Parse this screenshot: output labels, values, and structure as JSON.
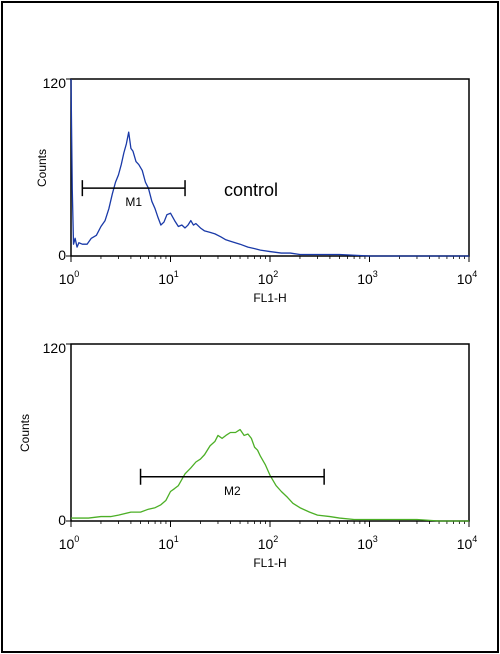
{
  "chart_data": [
    {
      "type": "line",
      "xscale": "log",
      "xlim": [
        1,
        10000
      ],
      "ylim": [
        0,
        120
      ],
      "x_ticks": [
        1,
        10,
        100,
        1000,
        10000
      ],
      "x_tick_labels": [
        "10",
        "10",
        "10",
        "10",
        "10"
      ],
      "x_tick_exponents": [
        "0",
        "1",
        "2",
        "3",
        "4"
      ],
      "y_ticks": [
        0,
        120
      ],
      "y_tick_labels": [
        "0",
        "120"
      ],
      "xlabel": "FL1-H",
      "ylabel": "Counts",
      "color": "#1a3aa8",
      "annotation": "control",
      "gate": {
        "label": "M1",
        "x_start": 1.3,
        "x_end": 14,
        "y": 46
      },
      "series": [
        {
          "x": [
            1.0,
            1.03,
            1.06,
            1.1,
            1.15,
            1.2,
            1.3,
            1.45,
            1.6,
            1.8,
            2.0,
            2.2,
            2.4,
            2.6,
            2.8,
            3.0,
            3.2,
            3.4,
            3.6,
            3.8,
            4.0,
            4.2,
            4.5,
            4.8,
            5.2,
            5.6,
            6.0,
            6.5,
            7.0,
            7.5,
            8.0,
            8.6,
            9.2,
            10,
            11,
            12,
            13,
            14,
            15,
            16,
            17,
            18,
            20,
            22,
            25,
            28,
            32,
            36,
            40,
            50,
            60,
            70,
            80,
            100,
            130,
            160,
            200,
            300,
            500,
            1000,
            3000,
            10000
          ],
          "y": [
            120,
            45,
            8,
            12,
            6,
            9,
            8,
            8,
            12,
            14,
            20,
            24,
            32,
            42,
            50,
            55,
            62,
            70,
            76,
            84,
            73,
            71,
            64,
            62,
            58,
            50,
            46,
            37,
            32,
            26,
            21,
            23,
            28,
            29,
            24,
            20,
            21,
            19,
            21,
            24,
            21,
            22,
            19,
            17,
            16,
            15,
            13,
            11,
            10,
            8,
            6,
            5,
            4,
            3,
            2,
            2,
            1,
            1,
            1,
            0,
            0,
            0
          ]
        }
      ]
    },
    {
      "type": "line",
      "xscale": "log",
      "xlim": [
        1,
        10000
      ],
      "ylim": [
        0,
        120
      ],
      "x_ticks": [
        1,
        10,
        100,
        1000,
        10000
      ],
      "x_tick_labels": [
        "10",
        "10",
        "10",
        "10",
        "10"
      ],
      "x_tick_exponents": [
        "0",
        "1",
        "2",
        "3",
        "4"
      ],
      "y_ticks": [
        0,
        120
      ],
      "y_tick_labels": [
        "0",
        "120"
      ],
      "xlabel": "FL1-H",
      "ylabel": "Counts",
      "color": "#4caf26",
      "gate": {
        "label": "M2",
        "x_start": 5,
        "x_end": 350,
        "y": 30
      },
      "series": [
        {
          "x": [
            1.0,
            1.2,
            1.5,
            2.0,
            2.5,
            3.0,
            4.0,
            5.0,
            6.0,
            7.0,
            8.0,
            9.0,
            10,
            11,
            12,
            14,
            16,
            18,
            20,
            22,
            25,
            28,
            30,
            33,
            36,
            40,
            45,
            50,
            55,
            60,
            65,
            70,
            75,
            80,
            90,
            100,
            115,
            130,
            150,
            170,
            200,
            250,
            300,
            400,
            500,
            700,
            1000,
            1500,
            2000,
            3000,
            5000,
            10000
          ],
          "y": [
            2,
            2,
            2,
            3,
            3,
            4,
            6,
            6,
            8,
            9,
            11,
            14,
            20,
            22,
            24,
            32,
            36,
            40,
            42,
            45,
            51,
            54,
            58,
            56,
            58,
            60,
            60,
            62,
            58,
            59,
            56,
            50,
            48,
            44,
            38,
            31,
            24,
            20,
            16,
            12,
            9,
            6,
            4,
            3,
            2,
            1,
            1,
            1,
            1,
            1,
            0,
            0
          ]
        }
      ]
    }
  ]
}
